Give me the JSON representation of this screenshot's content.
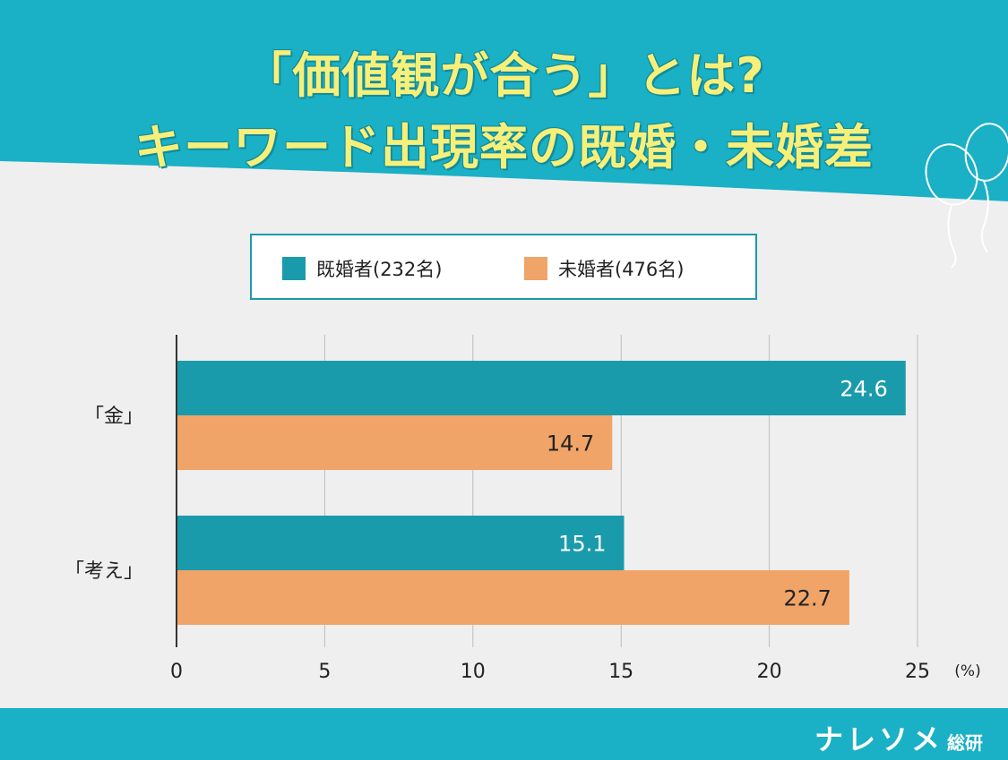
{
  "title": {
    "line1": "「価値観が合う」とは?",
    "line2": "キーワード出現率の既婚・未婚差"
  },
  "legend": [
    {
      "label": "既婚者(232名)",
      "color": "#1a9bab"
    },
    {
      "label": "未婚者(476名)",
      "color": "#f0a467"
    }
  ],
  "chart_data": {
    "type": "bar",
    "orientation": "horizontal",
    "categories": [
      "「金」",
      "「考え」"
    ],
    "series": [
      {
        "name": "既婚者(232名)",
        "values": [
          24.6,
          15.1
        ],
        "color": "#1a9bab",
        "label_color": "#ffffff"
      },
      {
        "name": "未婚者(476名)",
        "values": [
          14.7,
          22.7
        ],
        "color": "#f0a467",
        "label_color": "#222222"
      }
    ],
    "data_labels": [
      [
        "24.6",
        "15.1"
      ],
      [
        "14.7",
        "22.7"
      ]
    ],
    "xlim": [
      0,
      25
    ],
    "xticks": [
      0,
      5,
      10,
      15,
      20,
      25
    ],
    "x_tick_labels": [
      "0",
      "5",
      "10",
      "15",
      "20",
      "25"
    ],
    "unit": "(%)",
    "grid": true,
    "legend_position": "top"
  },
  "footer": {
    "brand": "ナレソメ",
    "brand_sub": "総研"
  },
  "colors": {
    "header": "#1ab0c6",
    "title_text": "#f6f07a",
    "background": "#efefef"
  }
}
